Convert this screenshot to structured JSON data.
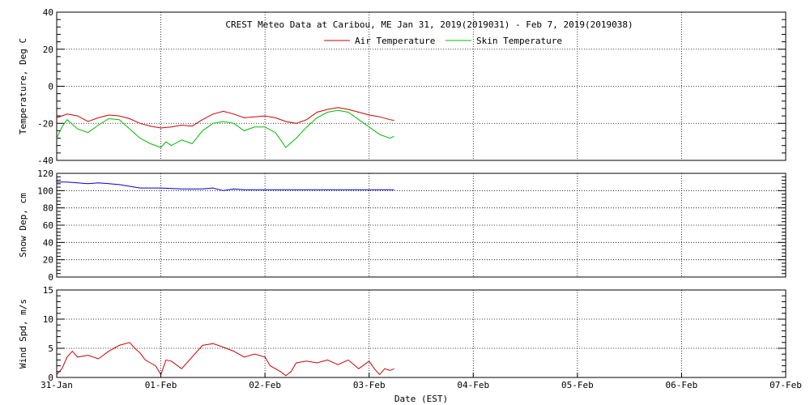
{
  "chart_data": {
    "type": "line",
    "title": "CREST Meteo Data at Caribou, ME   Jan 31, 2019(2019031) - Feb  7, 2019(2019038)",
    "xlabel": "Date (EST)",
    "x_ticks": [
      "31-Jan",
      "01-Feb",
      "02-Feb",
      "03-Feb",
      "04-Feb",
      "05-Feb",
      "06-Feb",
      "07-Feb"
    ],
    "xlim_days": [
      0,
      7
    ],
    "panels": [
      {
        "id": "temperature",
        "ylabel": "Temperature, Deg C",
        "ylim": [
          -40,
          40
        ],
        "yticks": [
          -40,
          -20,
          0,
          20,
          40
        ],
        "legend": "top-center",
        "series": [
          {
            "name": "Air Temperature",
            "color": "#cc0000",
            "x": [
              0,
              0.1,
              0.2,
              0.3,
              0.4,
              0.5,
              0.6,
              0.7,
              0.8,
              0.9,
              1.0,
              1.1,
              1.2,
              1.3,
              1.4,
              1.5,
              1.6,
              1.7,
              1.8,
              1.9,
              2.0,
              2.1,
              2.2,
              2.3,
              2.4,
              2.5,
              2.6,
              2.7,
              2.8,
              2.9,
              3.0,
              3.1,
              3.2,
              3.24
            ],
            "values": [
              -17,
              -15,
              -16,
              -19,
              -17,
              -15.5,
              -16,
              -17.5,
              -20,
              -21.5,
              -22.5,
              -22,
              -21,
              -21.5,
              -18,
              -15,
              -13.5,
              -15,
              -17,
              -16.5,
              -16,
              -17,
              -19,
              -20,
              -18,
              -14,
              -12.5,
              -11.5,
              -12.5,
              -14,
              -15.5,
              -16.5,
              -18,
              -18.5
            ]
          },
          {
            "name": "Skin Temperature",
            "color": "#00bb00",
            "x": [
              0,
              0.05,
              0.1,
              0.2,
              0.3,
              0.4,
              0.5,
              0.6,
              0.7,
              0.8,
              0.9,
              1.0,
              1.05,
              1.1,
              1.2,
              1.3,
              1.4,
              1.5,
              1.6,
              1.7,
              1.8,
              1.9,
              2.0,
              2.1,
              2.2,
              2.3,
              2.4,
              2.5,
              2.6,
              2.7,
              2.8,
              2.9,
              3.0,
              3.1,
              3.2,
              3.24
            ],
            "values": [
              -28,
              -22,
              -18,
              -23,
              -25,
              -21,
              -17.5,
              -18,
              -23,
              -28,
              -31,
              -33,
              -30,
              -32,
              -29,
              -31,
              -24,
              -20,
              -19,
              -20,
              -24,
              -22,
              -22,
              -25,
              -33,
              -28,
              -22,
              -17,
              -14,
              -13,
              -14,
              -18,
              -22,
              -26,
              -28,
              -27
            ]
          }
        ]
      },
      {
        "id": "snow",
        "ylabel": "Snow Dep, cm",
        "ylim": [
          0,
          120
        ],
        "yticks": [
          0,
          20,
          40,
          60,
          80,
          100,
          120
        ],
        "series": [
          {
            "name": "",
            "color": "#0000cc",
            "x": [
              0,
              0.1,
              0.2,
              0.3,
              0.4,
              0.5,
              0.6,
              0.7,
              0.8,
              1.0,
              1.2,
              1.4,
              1.5,
              1.6,
              1.7,
              1.8,
              2.0,
              2.5,
              3.0,
              3.24
            ],
            "values": [
              110,
              110,
              109,
              108,
              109,
              108,
              107,
              105,
              103,
              103,
              102,
              102,
              103,
              100,
              102,
              101,
              101,
              101,
              101,
              101
            ]
          }
        ]
      },
      {
        "id": "wind",
        "ylabel": "Wind Spd, m/s",
        "ylim": [
          0,
          15
        ],
        "yticks": [
          0,
          5,
          10,
          15
        ],
        "series": [
          {
            "name": "",
            "color": "#cc0000",
            "x": [
              0,
              0.05,
              0.1,
              0.15,
              0.2,
              0.3,
              0.4,
              0.5,
              0.6,
              0.7,
              0.75,
              0.8,
              0.85,
              0.9,
              0.95,
              1.0,
              1.05,
              1.1,
              1.2,
              1.3,
              1.4,
              1.5,
              1.6,
              1.7,
              1.8,
              1.9,
              2.0,
              2.05,
              2.1,
              2.15,
              2.2,
              2.25,
              2.3,
              2.4,
              2.5,
              2.6,
              2.7,
              2.8,
              2.9,
              3.0,
              3.05,
              3.1,
              3.15,
              3.2,
              3.24
            ],
            "values": [
              0.5,
              1.5,
              3.5,
              4.5,
              3.5,
              3.8,
              3.2,
              4.5,
              5.5,
              6.0,
              5.0,
              4.2,
              3.0,
              2.5,
              2.0,
              0.5,
              3.0,
              2.8,
              1.5,
              3.5,
              5.5,
              5.8,
              5.2,
              4.5,
              3.5,
              4.0,
              3.5,
              2.0,
              1.5,
              1.0,
              0.3,
              1.0,
              2.5,
              2.8,
              2.5,
              3.0,
              2.2,
              3.0,
              1.5,
              2.8,
              1.5,
              0.5,
              1.5,
              1.2,
              1.5
            ]
          }
        ]
      }
    ]
  }
}
